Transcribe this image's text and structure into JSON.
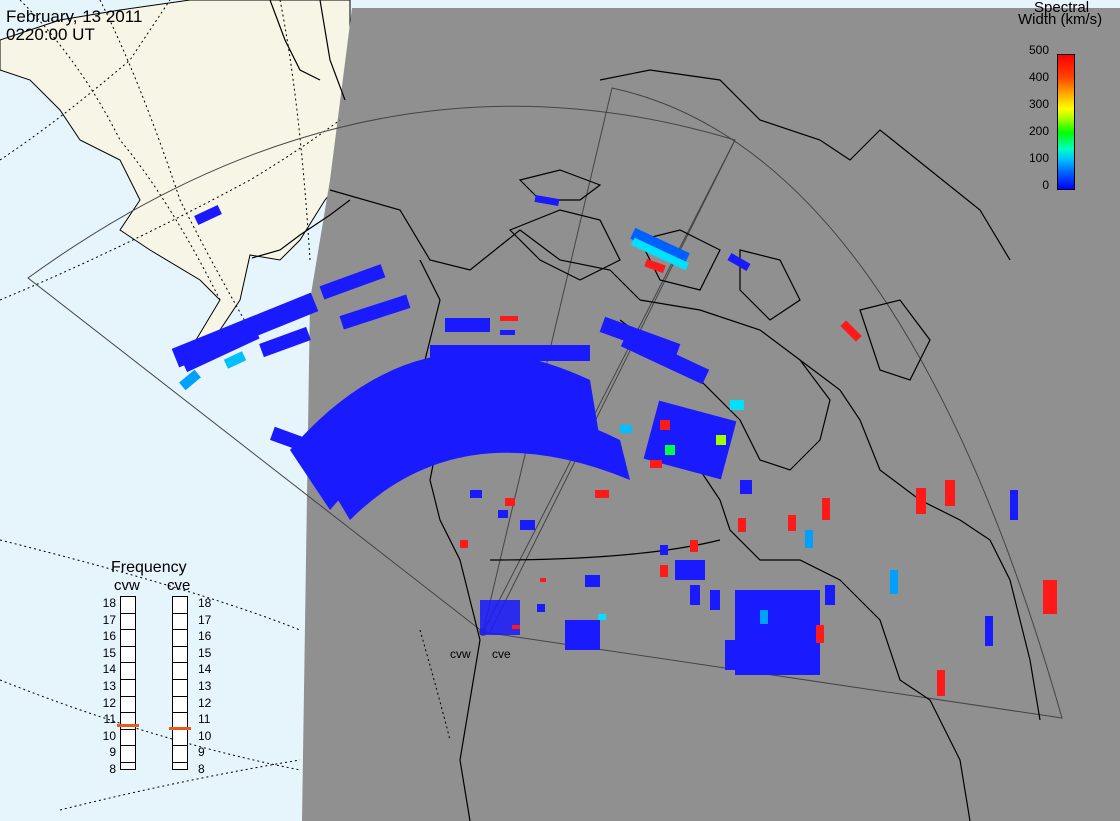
{
  "header": {
    "date": "February, 13 2011",
    "time": "0220:00 UT"
  },
  "colorbar": {
    "title_line1": "Spectral",
    "title_line2": "Width (km/s)",
    "ticks": [
      "500",
      "400",
      "300",
      "200",
      "100",
      "0"
    ],
    "range": [
      0,
      500
    ],
    "colors": [
      "#0000ff",
      "#00c0ff",
      "#00ff00",
      "#ffff00",
      "#ff0000"
    ]
  },
  "radars": {
    "west": "cvw",
    "east": "cve"
  },
  "frequency": {
    "title": "Frequency",
    "scale": [
      "18",
      "17",
      "16",
      "15",
      "14",
      "13",
      "12",
      "11",
      "10",
      "9",
      "8"
    ],
    "cvw_value_mhz": 10.8,
    "cve_value_mhz": 10.6
  },
  "colors": {
    "ocean_day": "#e6f4fc",
    "land_day": "#f6f5e6",
    "night": "#909090",
    "marker": "#e85a1a",
    "scatter_low": "#1a1aff",
    "scatter_high": "#ff1a1a"
  }
}
